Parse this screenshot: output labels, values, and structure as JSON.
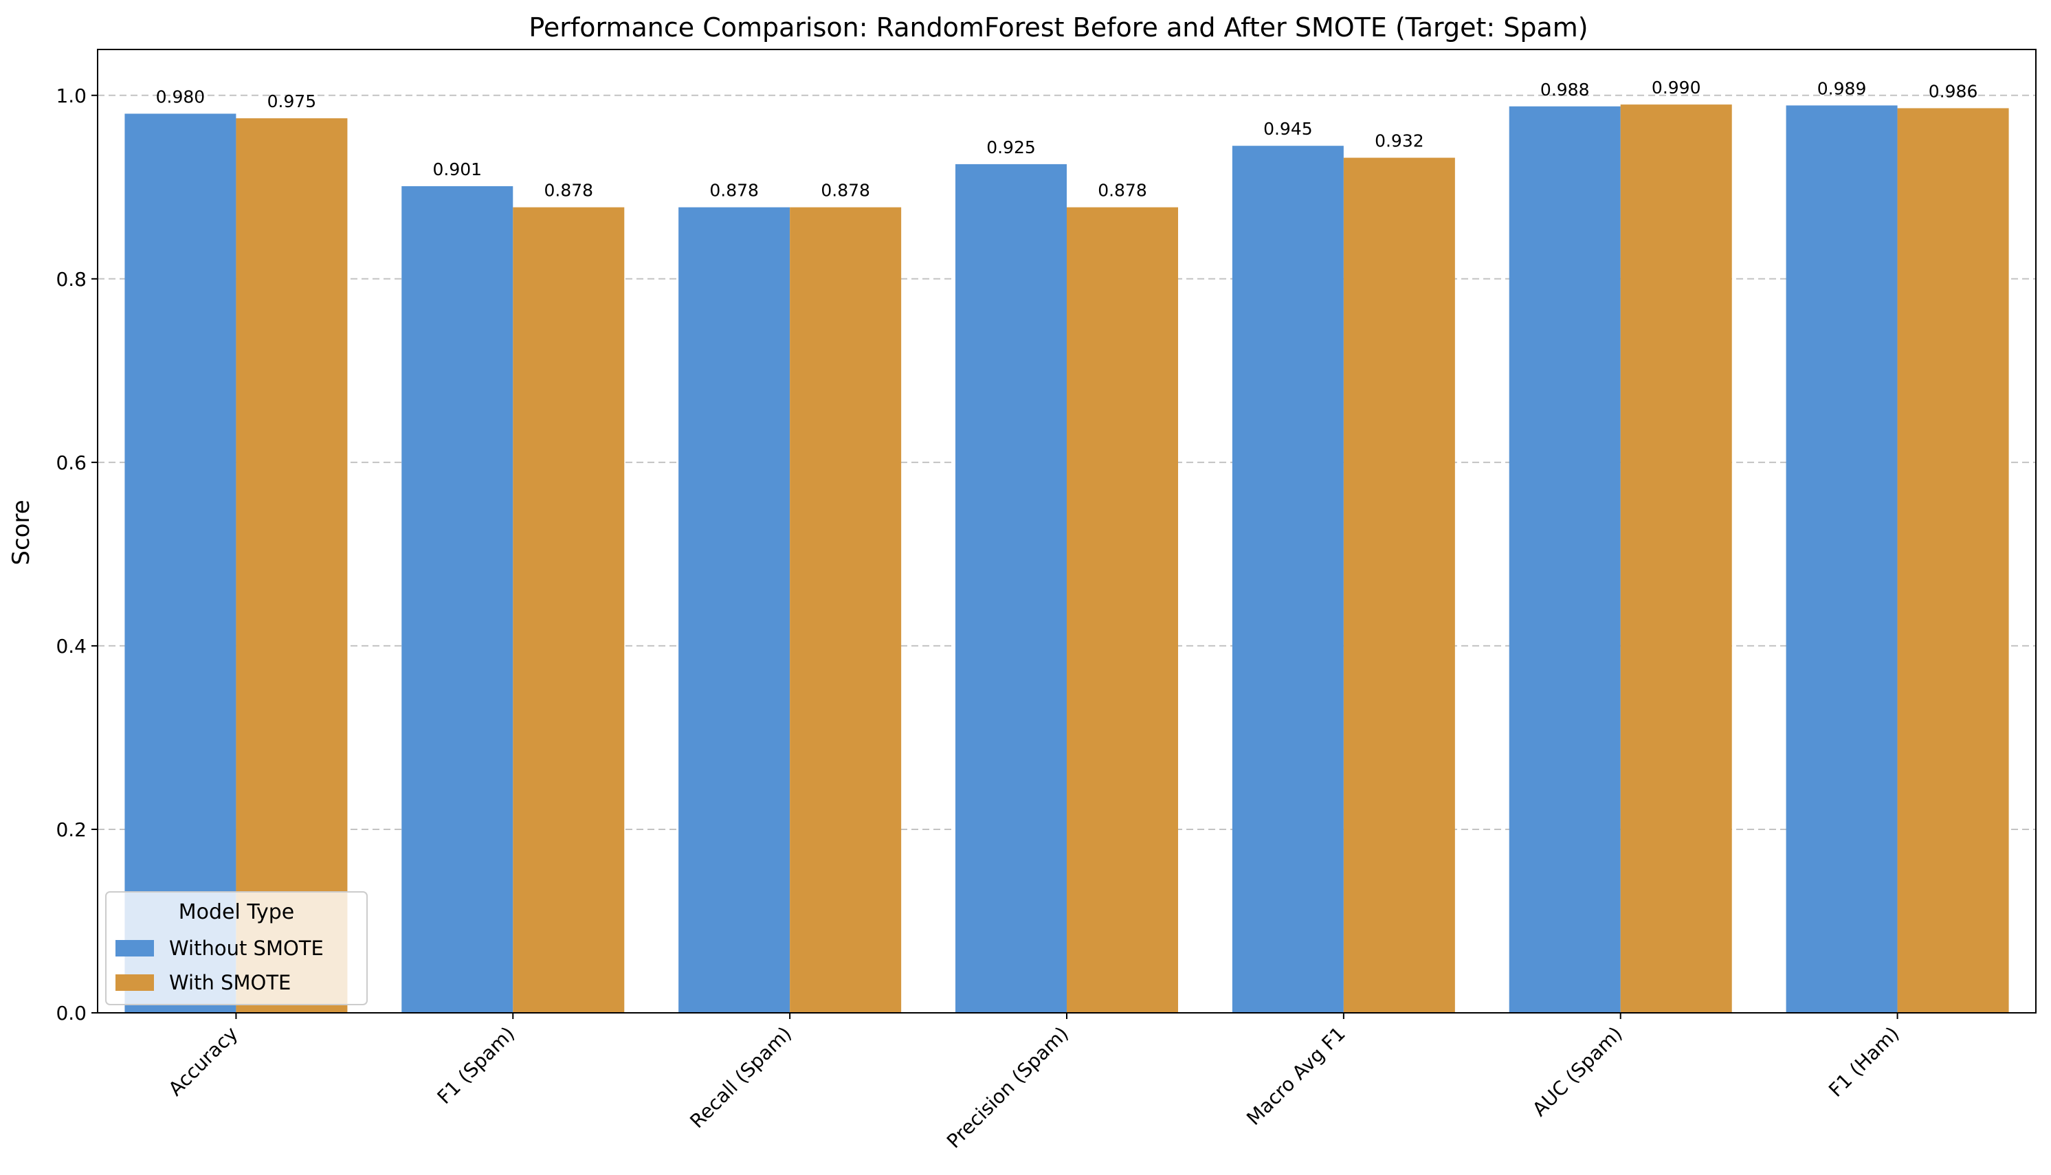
{
  "chart_data": {
    "type": "bar",
    "title": "Performance Comparison: RandomForest Before and After SMOTE (Target: Spam)",
    "xlabel": "",
    "ylabel": "Score",
    "ylim": [
      0,
      1.05
    ],
    "yticks": [
      0.0,
      0.2,
      0.4,
      0.6,
      0.8,
      1.0
    ],
    "ytick_labels": [
      "0.0",
      "0.2",
      "0.4",
      "0.6",
      "0.8",
      "1.0"
    ],
    "grid": "y-dashed",
    "categories": [
      "Accuracy",
      "F1 (Spam)",
      "Recall (Spam)",
      "Precision (Spam)",
      "Macro Avg F1",
      "AUC (Spam)",
      "F1 (Ham)"
    ],
    "series": [
      {
        "name": "Without SMOTE",
        "color": "#5592d4",
        "values": [
          0.98,
          0.901,
          0.878,
          0.925,
          0.945,
          0.988,
          0.989
        ],
        "labels": [
          "0.980",
          "0.901",
          "0.878",
          "0.925",
          "0.945",
          "0.988",
          "0.989"
        ]
      },
      {
        "name": "With SMOTE",
        "color": "#d4963e",
        "values": [
          0.975,
          0.878,
          0.878,
          0.878,
          0.932,
          0.99,
          0.986
        ],
        "labels": [
          "0.975",
          "0.878",
          "0.878",
          "0.878",
          "0.932",
          "0.990",
          "0.986"
        ]
      }
    ],
    "legend": {
      "title": "Model Type",
      "placement": "lower-left"
    }
  }
}
